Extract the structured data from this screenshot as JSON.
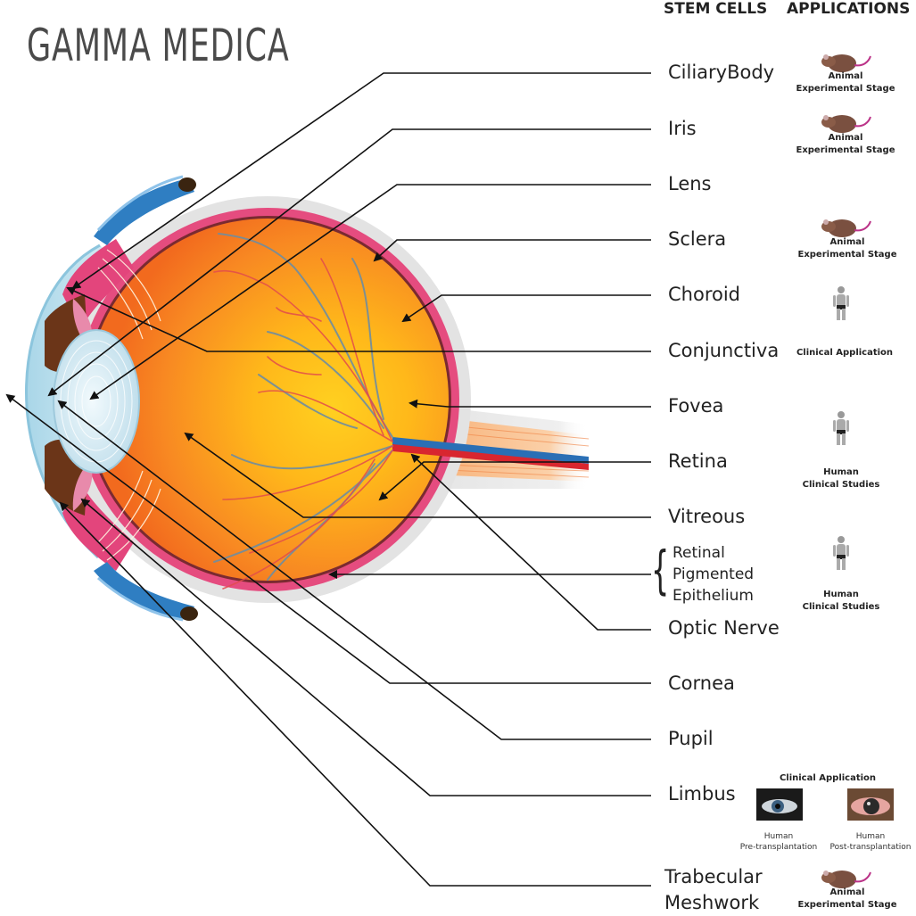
{
  "brand": "GAMMA MEDICA",
  "headers": {
    "stem_cells": "STEM CELLS",
    "applications": "APPLICATIONS"
  },
  "labels": {
    "ciliary_body": "CiliaryBody",
    "iris": "Iris",
    "lens": "Lens",
    "sclera": "Sclera",
    "choroid": "Choroid",
    "conjunctiva": "Conjunctiva",
    "fovea": "Fovea",
    "retina": "Retina",
    "vitreous": "Vitreous",
    "rpe_1": "Retinal",
    "rpe_2": "Pigmented",
    "rpe_3": "Epithelium",
    "optic_nerve": "Optic Nerve",
    "cornea": "Cornea",
    "pupil": "Pupil",
    "limbus": "Limbus",
    "trabecular_1": "Trabecular",
    "trabecular_2": "Meshwork"
  },
  "applications": {
    "animal_1": "Animal",
    "animal_2": "Experimental Stage",
    "clinical": "Clinical Application",
    "human_1": "Human",
    "human_2": "Clinical Studies"
  },
  "limbus_panel": {
    "title": "Clinical Application",
    "pre_1": "Human",
    "pre_2": "Pre-transplantation",
    "post_1": "Human",
    "post_2": "Post-transplantation"
  },
  "colors": {
    "orange": "#f47a20",
    "yellow": "#ffc21a",
    "pink": "#e0457b",
    "blue_vessel": "#2a6fb5",
    "red_vessel": "#d8262f",
    "brown": "#6b3518",
    "lens_blue": "#d6ecf5"
  }
}
